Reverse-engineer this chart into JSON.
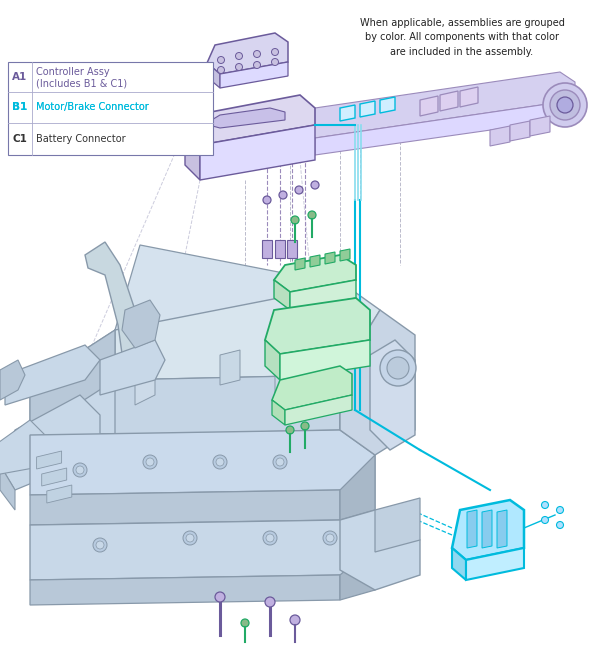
{
  "bg_color": "#ffffff",
  "purple": "#6B5B9B",
  "purple_light": "#9B8BBB",
  "cyan": "#00BBDD",
  "cyan_light": "#88DDEE",
  "green": "#22AA66",
  "green_light": "#88CC88",
  "frame_light": "#C8D8E8",
  "frame_mid": "#B8C8D8",
  "frame_dark": "#A8B8C8",
  "frame_edge": "#8899AA",
  "note_text": "When applicable, assemblies are grouped\nby color. All components with that color\nare included in the assembly.",
  "legend_items": [
    {
      "code": "A1",
      "label1": "Controller Assy",
      "label2": "(Includes B1 & C1)",
      "color": "#6B5B9B",
      "bg": "#ffffff"
    },
    {
      "code": "B1",
      "label1": "Motor/Brake Connector",
      "label2": "",
      "color": "#00BBDD",
      "bg": "#D8F5FF"
    },
    {
      "code": "C1",
      "label1": "Battery Connector",
      "label2": "",
      "color": "#333333",
      "bg": "#ffffff"
    }
  ]
}
